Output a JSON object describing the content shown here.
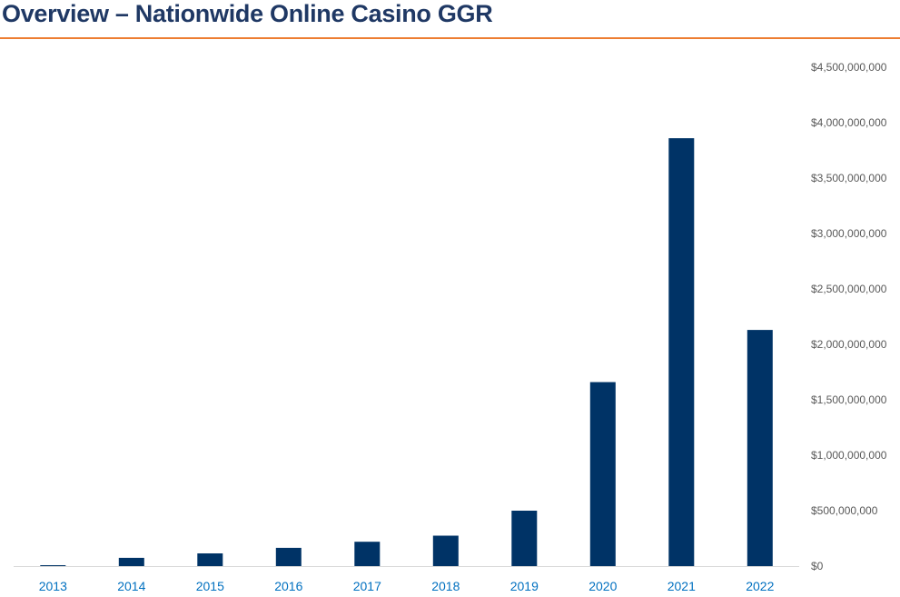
{
  "header": {
    "title": "Overview – Nationwide Online Casino GGR"
  },
  "colors": {
    "title": "#1f3864",
    "accent_rule": "#ed7d31",
    "bar": "#003366",
    "x_tick_label": "#0070c0",
    "y_tick_label": "#595959"
  },
  "chart_data": {
    "type": "bar",
    "categories": [
      "2013",
      "2014",
      "2015",
      "2016",
      "2017",
      "2018",
      "2019",
      "2020",
      "2021",
      "2022"
    ],
    "values": [
      8000000,
      75000000,
      115000000,
      165000000,
      220000000,
      275000000,
      500000000,
      1660000000,
      3860000000,
      2130000000
    ],
    "ylim": [
      0,
      4500000000
    ],
    "y_ticks": [
      0,
      500000000,
      1000000000,
      1500000000,
      2000000000,
      2500000000,
      3000000000,
      3500000000,
      4000000000,
      4500000000
    ],
    "y_tick_labels": [
      "$0",
      "$500,000,000",
      "$1,000,000,000",
      "$1,500,000,000",
      "$2,000,000,000",
      "$2,500,000,000",
      "$3,000,000,000",
      "$3,500,000,000",
      "$4,000,000,000",
      "$4,500,000,000"
    ],
    "y_axis_side": "right",
    "grid": false,
    "legend": "none"
  }
}
